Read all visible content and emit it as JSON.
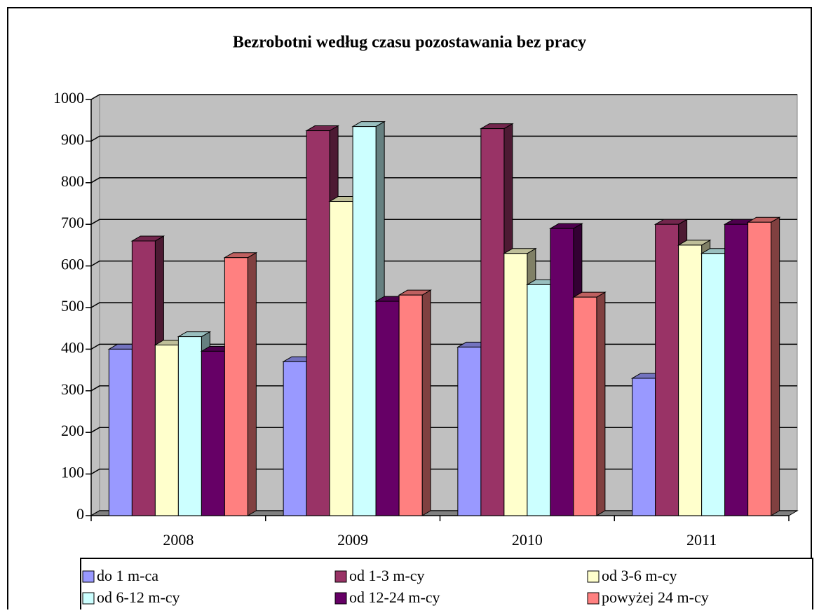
{
  "chart_data": {
    "type": "bar3d",
    "title": "Bezrobotni według czasu pozostawania bez pracy",
    "categories": [
      "2008",
      "2009",
      "2010",
      "2011"
    ],
    "series": [
      {
        "name": "do 1 m-ca",
        "color": "#9999ff",
        "values": [
          400,
          370,
          405,
          330
        ]
      },
      {
        "name": "od 1-3 m-cy",
        "color": "#993366",
        "values": [
          660,
          925,
          930,
          700
        ]
      },
      {
        "name": "od 3-6 m-cy",
        "color": "#ffffcc",
        "values": [
          410,
          755,
          630,
          650
        ]
      },
      {
        "name": "od 6-12 m-cy",
        "color": "#ccffff",
        "values": [
          430,
          935,
          555,
          630
        ]
      },
      {
        "name": "od 12-24 m-cy",
        "color": "#660066",
        "values": [
          395,
          515,
          690,
          700
        ]
      },
      {
        "name": "powyżej 24 m-cy",
        "color": "#ff8080",
        "values": [
          620,
          530,
          525,
          705
        ]
      }
    ],
    "ylim": [
      0,
      1000
    ],
    "yticks": [
      0,
      100,
      200,
      300,
      400,
      500,
      600,
      700,
      800,
      900,
      1000
    ],
    "grid": true,
    "legend": "bottom"
  }
}
